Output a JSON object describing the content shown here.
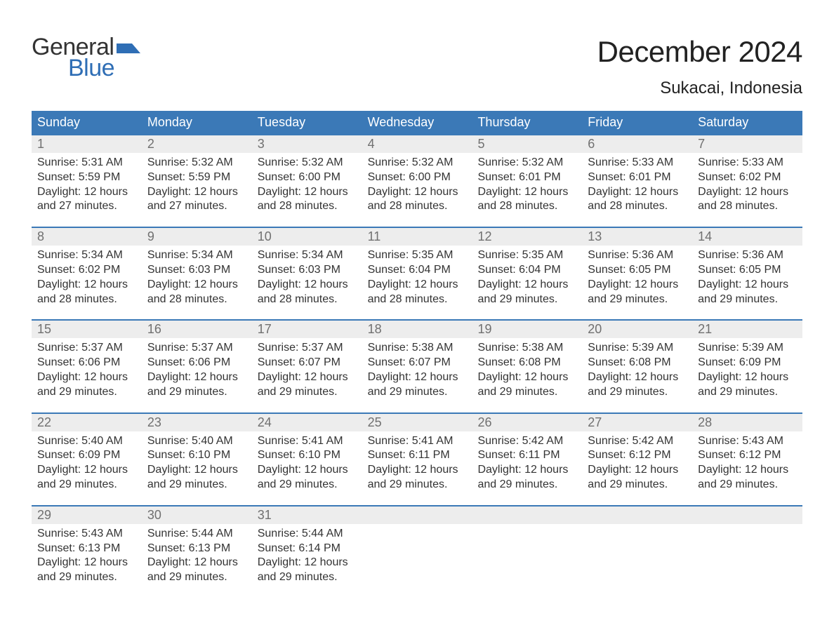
{
  "logo": {
    "word1": "General",
    "word2": "Blue",
    "word1_color": "#333333",
    "word2_color": "#2f6eb5",
    "flag_color": "#2f6eb5"
  },
  "title": "December 2024",
  "location": "Sukacai, Indonesia",
  "styling": {
    "page_bg": "#ffffff",
    "header_bg": "#3b79b7",
    "header_text": "#ffffff",
    "daynum_bg": "#ededed",
    "daynum_text": "#707070",
    "body_text": "#333333",
    "week_border": "#3b79b7",
    "title_fontsize": 42,
    "location_fontsize": 24,
    "weekday_fontsize": 18,
    "daynum_fontsize": 18,
    "detail_fontsize": 16
  },
  "weekdays": [
    "Sunday",
    "Monday",
    "Tuesday",
    "Wednesday",
    "Thursday",
    "Friday",
    "Saturday"
  ],
  "weeks": [
    [
      {
        "num": "1",
        "sunrise": "Sunrise: 5:31 AM",
        "sunset": "Sunset: 5:59 PM",
        "dl1": "Daylight: 12 hours",
        "dl2": "and 27 minutes."
      },
      {
        "num": "2",
        "sunrise": "Sunrise: 5:32 AM",
        "sunset": "Sunset: 5:59 PM",
        "dl1": "Daylight: 12 hours",
        "dl2": "and 27 minutes."
      },
      {
        "num": "3",
        "sunrise": "Sunrise: 5:32 AM",
        "sunset": "Sunset: 6:00 PM",
        "dl1": "Daylight: 12 hours",
        "dl2": "and 28 minutes."
      },
      {
        "num": "4",
        "sunrise": "Sunrise: 5:32 AM",
        "sunset": "Sunset: 6:00 PM",
        "dl1": "Daylight: 12 hours",
        "dl2": "and 28 minutes."
      },
      {
        "num": "5",
        "sunrise": "Sunrise: 5:32 AM",
        "sunset": "Sunset: 6:01 PM",
        "dl1": "Daylight: 12 hours",
        "dl2": "and 28 minutes."
      },
      {
        "num": "6",
        "sunrise": "Sunrise: 5:33 AM",
        "sunset": "Sunset: 6:01 PM",
        "dl1": "Daylight: 12 hours",
        "dl2": "and 28 minutes."
      },
      {
        "num": "7",
        "sunrise": "Sunrise: 5:33 AM",
        "sunset": "Sunset: 6:02 PM",
        "dl1": "Daylight: 12 hours",
        "dl2": "and 28 minutes."
      }
    ],
    [
      {
        "num": "8",
        "sunrise": "Sunrise: 5:34 AM",
        "sunset": "Sunset: 6:02 PM",
        "dl1": "Daylight: 12 hours",
        "dl2": "and 28 minutes."
      },
      {
        "num": "9",
        "sunrise": "Sunrise: 5:34 AM",
        "sunset": "Sunset: 6:03 PM",
        "dl1": "Daylight: 12 hours",
        "dl2": "and 28 minutes."
      },
      {
        "num": "10",
        "sunrise": "Sunrise: 5:34 AM",
        "sunset": "Sunset: 6:03 PM",
        "dl1": "Daylight: 12 hours",
        "dl2": "and 28 minutes."
      },
      {
        "num": "11",
        "sunrise": "Sunrise: 5:35 AM",
        "sunset": "Sunset: 6:04 PM",
        "dl1": "Daylight: 12 hours",
        "dl2": "and 28 minutes."
      },
      {
        "num": "12",
        "sunrise": "Sunrise: 5:35 AM",
        "sunset": "Sunset: 6:04 PM",
        "dl1": "Daylight: 12 hours",
        "dl2": "and 29 minutes."
      },
      {
        "num": "13",
        "sunrise": "Sunrise: 5:36 AM",
        "sunset": "Sunset: 6:05 PM",
        "dl1": "Daylight: 12 hours",
        "dl2": "and 29 minutes."
      },
      {
        "num": "14",
        "sunrise": "Sunrise: 5:36 AM",
        "sunset": "Sunset: 6:05 PM",
        "dl1": "Daylight: 12 hours",
        "dl2": "and 29 minutes."
      }
    ],
    [
      {
        "num": "15",
        "sunrise": "Sunrise: 5:37 AM",
        "sunset": "Sunset: 6:06 PM",
        "dl1": "Daylight: 12 hours",
        "dl2": "and 29 minutes."
      },
      {
        "num": "16",
        "sunrise": "Sunrise: 5:37 AM",
        "sunset": "Sunset: 6:06 PM",
        "dl1": "Daylight: 12 hours",
        "dl2": "and 29 minutes."
      },
      {
        "num": "17",
        "sunrise": "Sunrise: 5:37 AM",
        "sunset": "Sunset: 6:07 PM",
        "dl1": "Daylight: 12 hours",
        "dl2": "and 29 minutes."
      },
      {
        "num": "18",
        "sunrise": "Sunrise: 5:38 AM",
        "sunset": "Sunset: 6:07 PM",
        "dl1": "Daylight: 12 hours",
        "dl2": "and 29 minutes."
      },
      {
        "num": "19",
        "sunrise": "Sunrise: 5:38 AM",
        "sunset": "Sunset: 6:08 PM",
        "dl1": "Daylight: 12 hours",
        "dl2": "and 29 minutes."
      },
      {
        "num": "20",
        "sunrise": "Sunrise: 5:39 AM",
        "sunset": "Sunset: 6:08 PM",
        "dl1": "Daylight: 12 hours",
        "dl2": "and 29 minutes."
      },
      {
        "num": "21",
        "sunrise": "Sunrise: 5:39 AM",
        "sunset": "Sunset: 6:09 PM",
        "dl1": "Daylight: 12 hours",
        "dl2": "and 29 minutes."
      }
    ],
    [
      {
        "num": "22",
        "sunrise": "Sunrise: 5:40 AM",
        "sunset": "Sunset: 6:09 PM",
        "dl1": "Daylight: 12 hours",
        "dl2": "and 29 minutes."
      },
      {
        "num": "23",
        "sunrise": "Sunrise: 5:40 AM",
        "sunset": "Sunset: 6:10 PM",
        "dl1": "Daylight: 12 hours",
        "dl2": "and 29 minutes."
      },
      {
        "num": "24",
        "sunrise": "Sunrise: 5:41 AM",
        "sunset": "Sunset: 6:10 PM",
        "dl1": "Daylight: 12 hours",
        "dl2": "and 29 minutes."
      },
      {
        "num": "25",
        "sunrise": "Sunrise: 5:41 AM",
        "sunset": "Sunset: 6:11 PM",
        "dl1": "Daylight: 12 hours",
        "dl2": "and 29 minutes."
      },
      {
        "num": "26",
        "sunrise": "Sunrise: 5:42 AM",
        "sunset": "Sunset: 6:11 PM",
        "dl1": "Daylight: 12 hours",
        "dl2": "and 29 minutes."
      },
      {
        "num": "27",
        "sunrise": "Sunrise: 5:42 AM",
        "sunset": "Sunset: 6:12 PM",
        "dl1": "Daylight: 12 hours",
        "dl2": "and 29 minutes."
      },
      {
        "num": "28",
        "sunrise": "Sunrise: 5:43 AM",
        "sunset": "Sunset: 6:12 PM",
        "dl1": "Daylight: 12 hours",
        "dl2": "and 29 minutes."
      }
    ],
    [
      {
        "num": "29",
        "sunrise": "Sunrise: 5:43 AM",
        "sunset": "Sunset: 6:13 PM",
        "dl1": "Daylight: 12 hours",
        "dl2": "and 29 minutes."
      },
      {
        "num": "30",
        "sunrise": "Sunrise: 5:44 AM",
        "sunset": "Sunset: 6:13 PM",
        "dl1": "Daylight: 12 hours",
        "dl2": "and 29 minutes."
      },
      {
        "num": "31",
        "sunrise": "Sunrise: 5:44 AM",
        "sunset": "Sunset: 6:14 PM",
        "dl1": "Daylight: 12 hours",
        "dl2": "and 29 minutes."
      },
      null,
      null,
      null,
      null
    ]
  ]
}
